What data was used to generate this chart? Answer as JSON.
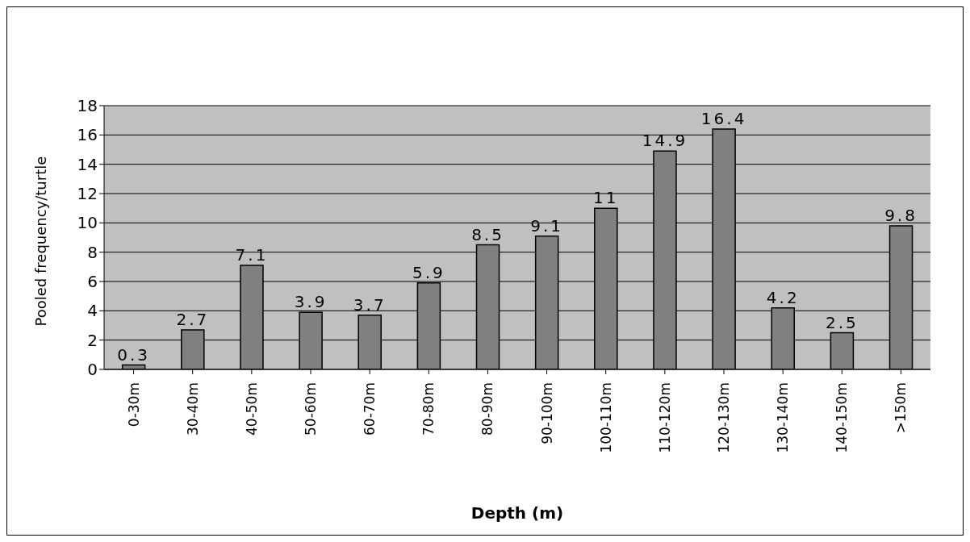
{
  "chart_data": {
    "type": "bar",
    "xlabel": "Depth   (m)",
    "ylabel": "Pooled frequency/turtle",
    "categories": [
      "0-30m",
      "30-40m",
      "40-50m",
      "50-60m",
      "60-70m",
      "70-80m",
      "80-90m",
      "90-100m",
      "100-110m",
      "110-120m",
      "120-130m",
      "130-140m",
      "140-150m",
      ">150m"
    ],
    "values": [
      0.3,
      2.7,
      7.1,
      3.9,
      3.7,
      5.9,
      8.5,
      9.1,
      11,
      14.9,
      16.4,
      4.2,
      2.5,
      9.8
    ],
    "color": "#808080",
    "ylim": [
      0,
      18
    ],
    "yticks": [
      0,
      2,
      4,
      6,
      8,
      10,
      12,
      14,
      16,
      18
    ],
    "grid": "y",
    "data_labels": true,
    "legend": false
  }
}
